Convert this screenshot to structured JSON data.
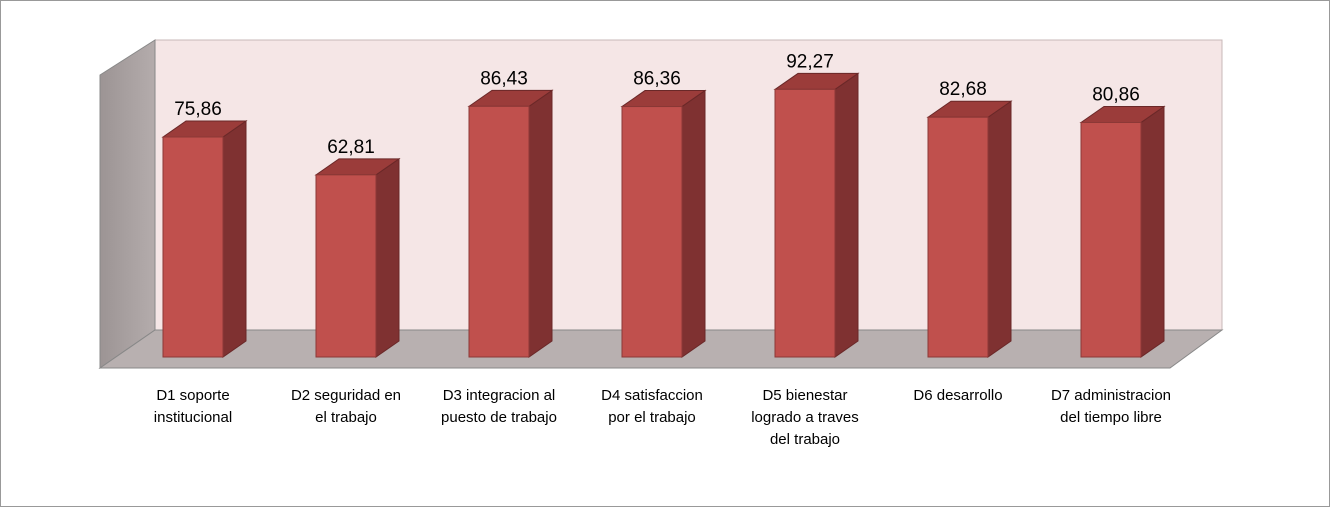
{
  "chart_data": {
    "type": "bar3d",
    "categories": [
      "D1 soporte institucional",
      "D2 seguridad en el trabajo",
      "D3 integracion al puesto de trabajo",
      "D4 satisfaccion por el trabajo",
      "D5 bienestar logrado a traves del trabajo",
      "D6 desarrollo",
      "D7 administracion del tiempo libre"
    ],
    "values": [
      75.86,
      62.81,
      86.43,
      86.36,
      92.27,
      82.68,
      80.86
    ],
    "value_labels": [
      "75,86",
      "62,81",
      "86,43",
      "86,36",
      "92,27",
      "82,68",
      "80,86"
    ],
    "color": "#c0504d",
    "ylim": [
      0,
      100
    ]
  }
}
